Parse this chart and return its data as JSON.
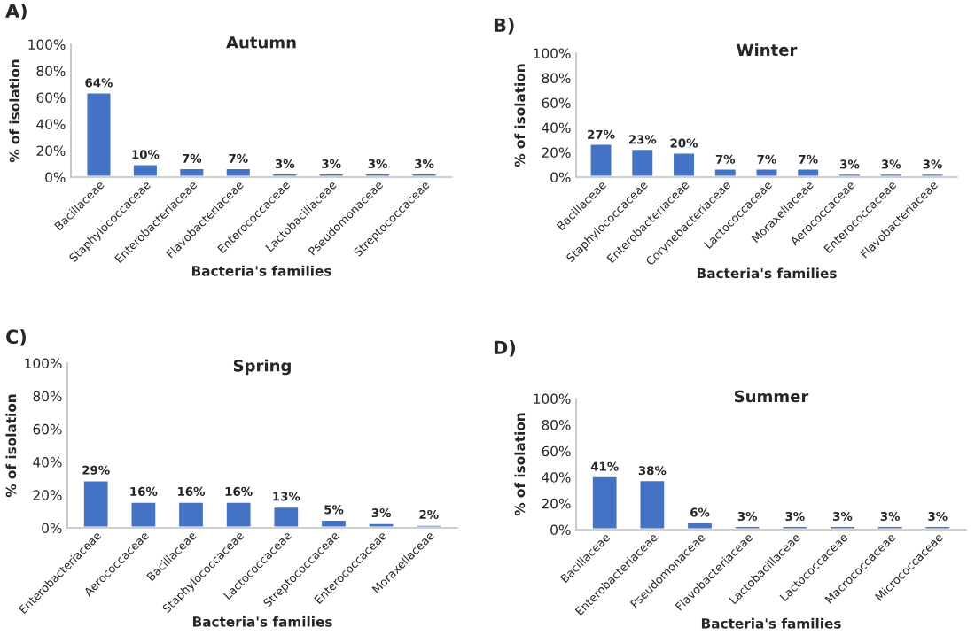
{
  "chart_data": [
    {
      "type": "bar",
      "title": "Autumn",
      "xlabel": "Bacteria's families",
      "ylabel": "% of isolation",
      "annotations": [
        "A)"
      ],
      "color": "#4472c4",
      "ylim": [
        0,
        100
      ],
      "yticks": [
        {
          "value": 0,
          "label": "0%"
        },
        {
          "value": 20,
          "label": "20%"
        },
        {
          "value": 40,
          "label": "40%"
        },
        {
          "value": 60,
          "label": "60%"
        },
        {
          "value": 80,
          "label": "80%"
        },
        {
          "value": 100,
          "label": "100%"
        }
      ],
      "grid": false,
      "categories": [
        "Bacillaceae",
        "Staphylococcaceae",
        "Enterobacteriaceae",
        "Flavobacteriaceae",
        "Enterococcaceae",
        "Lactobacillaceae",
        "Pseudomonaceae",
        "Streptococcaceae"
      ],
      "values": [
        64,
        10,
        7,
        7,
        3,
        3,
        3,
        3
      ],
      "value_labels": [
        "64%",
        "10%",
        "7%",
        "7%",
        "3%",
        "3%",
        "3%",
        "3%"
      ]
    },
    {
      "type": "bar",
      "title": "Winter",
      "xlabel": "Bacteria's families",
      "ylabel": "% of isolation",
      "annotations": [
        "B)"
      ],
      "color": "#4472c4",
      "ylim": [
        0,
        100
      ],
      "yticks": [
        {
          "value": 0,
          "label": "0%"
        },
        {
          "value": 20,
          "label": "20%"
        },
        {
          "value": 40,
          "label": "40%"
        },
        {
          "value": 60,
          "label": "60%"
        },
        {
          "value": 80,
          "label": "80%"
        },
        {
          "value": 100,
          "label": "100%"
        }
      ],
      "grid": false,
      "categories": [
        "Bacillaceae",
        "Staphylococcaceae",
        "Enterobacteriaceae",
        "Corynebacteriaceae",
        "Lactococcaceae",
        "Moraxellaceae",
        "Aerococcaceae",
        "Enterococcaceae",
        "Flavobacteriaceae"
      ],
      "values": [
        27,
        23,
        20,
        7,
        7,
        7,
        3,
        3,
        3
      ],
      "value_labels": [
        "27%",
        "23%",
        "20%",
        "7%",
        "7%",
        "7%",
        "3%",
        "3%",
        "3%"
      ]
    },
    {
      "type": "bar",
      "title": "Spring",
      "xlabel": "Bacteria's families",
      "ylabel": "% of isolation",
      "annotations": [
        "C)"
      ],
      "color": "#4472c4",
      "ylim": [
        0,
        100
      ],
      "yticks": [
        {
          "value": 0,
          "label": "0%"
        },
        {
          "value": 20,
          "label": "20%"
        },
        {
          "value": 40,
          "label": "40%"
        },
        {
          "value": 60,
          "label": "60%"
        },
        {
          "value": 80,
          "label": "80%"
        },
        {
          "value": 100,
          "label": "100%"
        }
      ],
      "grid": false,
      "categories": [
        "Enterobacteriaceae",
        "Aerococcaceae",
        "Bacillaceae",
        "Staphylococcaceae",
        "Lactococcaceae",
        "Streptococcaceae",
        "Enterococcaceae",
        "Moraxellaceae"
      ],
      "values": [
        29,
        16,
        16,
        16,
        13,
        5,
        3,
        2
      ],
      "value_labels": [
        "29%",
        "16%",
        "16%",
        "16%",
        "13%",
        "5%",
        "3%",
        "2%"
      ]
    },
    {
      "type": "bar",
      "title": "Summer",
      "xlabel": "Bacteria's families",
      "ylabel": "% of isolation",
      "annotations": [
        "D)"
      ],
      "color": "#4472c4",
      "ylim": [
        0,
        100
      ],
      "yticks": [
        {
          "value": 0,
          "label": "0%"
        },
        {
          "value": 20,
          "label": "20%"
        },
        {
          "value": 40,
          "label": "40%"
        },
        {
          "value": 60,
          "label": "60%"
        },
        {
          "value": 80,
          "label": "80%"
        },
        {
          "value": 100,
          "label": "100%"
        }
      ],
      "grid": false,
      "categories": [
        "Bacillaceae",
        "Enterobacteriaceae",
        "Pseudomonaceae",
        "Flavobacteriaceae",
        "Lactobacillaceae",
        "Lactococcaceae",
        "Macrococcaceae",
        "Micrococcaceae"
      ],
      "values": [
        41,
        38,
        6,
        3,
        3,
        3,
        3,
        3
      ],
      "value_labels": [
        "41%",
        "38%",
        "6%",
        "3%",
        "3%",
        "3%",
        "3%",
        "3%"
      ]
    }
  ]
}
